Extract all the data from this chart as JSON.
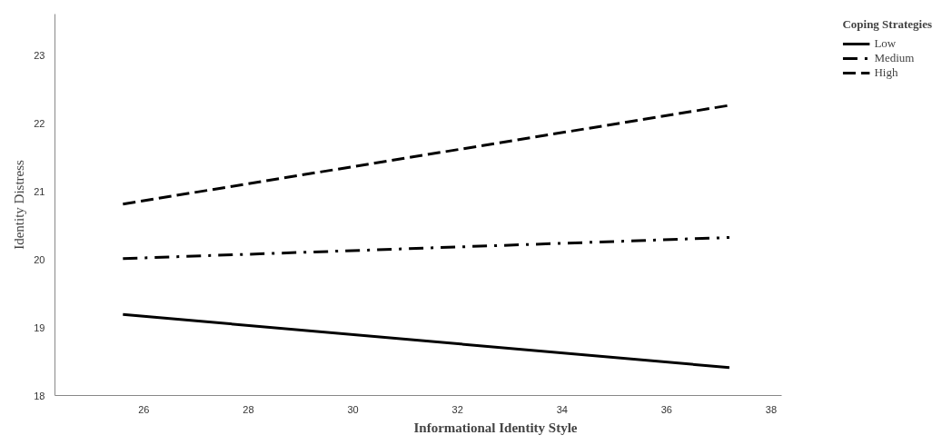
{
  "chart_data": {
    "type": "line",
    "xlabel": "Informational Identity Style",
    "ylabel": "Identity Distress",
    "legend_title": "Coping Strategies",
    "x": [
      25.6,
      37.2
    ],
    "xlim": [
      24.3,
      38.2
    ],
    "ylim": [
      18,
      23.6
    ],
    "xticks": [
      26,
      28,
      30,
      32,
      34,
      36,
      38
    ],
    "yticks": [
      18,
      19,
      20,
      21,
      22,
      23
    ],
    "grid": false,
    "legend": "top right",
    "series": [
      {
        "name": "Low",
        "color": "#000000",
        "line_style": "solid",
        "values": [
          19.19,
          18.41
        ]
      },
      {
        "name": "Medium",
        "color": "#000000",
        "line_style": "dashdot",
        "values": [
          20.01,
          20.32
        ]
      },
      {
        "name": "High",
        "color": "#000000",
        "line_style": "dashed",
        "values": [
          20.81,
          22.26
        ]
      }
    ]
  }
}
